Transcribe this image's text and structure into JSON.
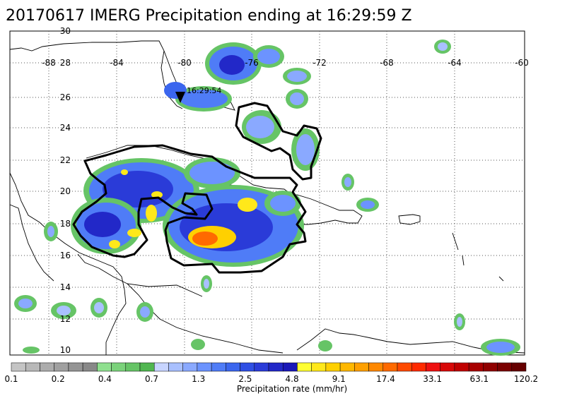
{
  "title": "20170617 IMERG Precipitation ending at 16:29:59 Z",
  "marker_label": "16:29:54",
  "longitude_labels": [
    "-88",
    "-84",
    "-80",
    "-76",
    "-72",
    "-68",
    "-64",
    "-60"
  ],
  "latitude_labels": [
    "30",
    "28",
    "26",
    "24",
    "22",
    "20",
    "18",
    "16",
    "14",
    "12",
    "10"
  ],
  "colorbar": {
    "title": "Precipitation rate (mm/hr)",
    "tick_labels": [
      "0.1",
      "0.2",
      "0.4",
      "0.7",
      "1.3",
      "2.5",
      "4.8",
      "9.1",
      "17.4",
      "33.1",
      "63.1",
      "120.2"
    ],
    "colors": [
      "#c4c4c4",
      "#b8b8b8",
      "#acacac",
      "#a0a0a0",
      "#949494",
      "#888888",
      "#8fe08f",
      "#7ad27a",
      "#66c466",
      "#50b650",
      "#c7d4ff",
      "#a9c0ff",
      "#8aa9ff",
      "#6c93ff",
      "#4f7cf7",
      "#3b66ee",
      "#2f4fe4",
      "#2a3bd8",
      "#2228c8",
      "#1a18b8",
      "#ffff33",
      "#ffe81a",
      "#ffd000",
      "#ffb800",
      "#ffa000",
      "#ff8800",
      "#ff6a00",
      "#ff4a00",
      "#ff2a00",
      "#ee1010",
      "#d80808",
      "#c00000",
      "#a80000",
      "#900000",
      "#7a0000",
      "#660000"
    ]
  }
}
